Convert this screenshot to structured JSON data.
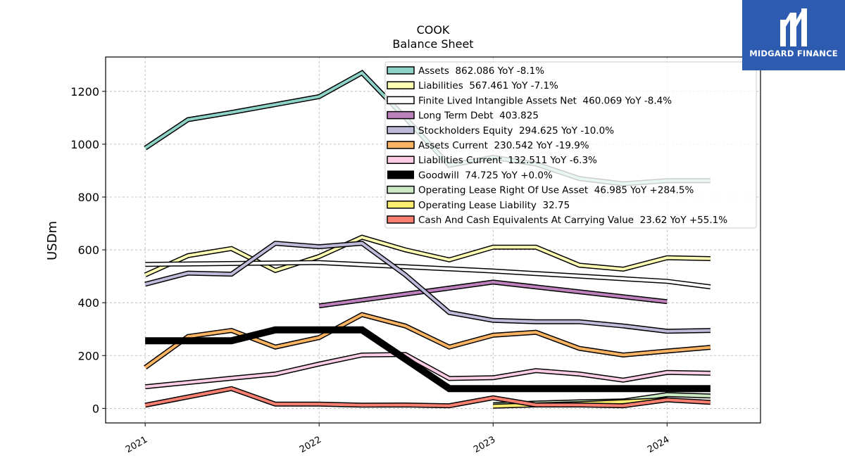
{
  "chart_data": {
    "type": "line",
    "title": "COOK",
    "subtitle": "Balance  Sheet",
    "ylabel": "USDm",
    "xlabel": "",
    "ylim": [
      -55,
      1330
    ],
    "xlim": [
      "2020-10-10",
      "2024-07-15"
    ],
    "yticks": [
      0,
      200,
      400,
      600,
      800,
      1000,
      1200
    ],
    "xticks": [
      "2021",
      "2022",
      "2023",
      "2024"
    ],
    "xtick_dates": [
      "2021-01-01",
      "2022-01-01",
      "2023-01-01",
      "2024-01-01"
    ],
    "grid": true,
    "legend_position": "top-right",
    "series": [
      {
        "name": "Assets  862.086 YoY -8.1%",
        "color": "#8dd3c7",
        "width": 4,
        "x": [
          "2021-01-01",
          "2021-04-01",
          "2021-07-01",
          "2021-10-01",
          "2022-01-01",
          "2022-04-01",
          "2022-07-01",
          "2022-10-01",
          "2023-01-01",
          "2023-04-01",
          "2023-07-01",
          "2023-10-01",
          "2024-01-01",
          "2024-04-01"
        ],
        "y": [
          985,
          1093,
          1120,
          1150,
          1180,
          1270,
          1100,
          920,
          950,
          925,
          870,
          850,
          862,
          862
        ]
      },
      {
        "name": "Liabilities  567.461 YoY -7.1%",
        "color": "#ffffb3",
        "width": 4,
        "x": [
          "2021-01-01",
          "2021-04-01",
          "2021-07-01",
          "2021-10-01",
          "2022-01-01",
          "2022-04-01",
          "2022-07-01",
          "2022-10-01",
          "2023-01-01",
          "2023-04-01",
          "2023-07-01",
          "2023-10-01",
          "2024-01-01",
          "2024-04-01"
        ],
        "y": [
          505,
          578,
          605,
          522,
          575,
          648,
          600,
          562,
          610,
          610,
          542,
          527,
          570,
          567
        ]
      },
      {
        "name": "Finite Lived Intangible Assets Net  460.069 YoY -8.4%",
        "color": "#ffffff",
        "width": 4,
        "x": [
          "2021-01-01",
          "2022-01-01",
          "2023-01-01",
          "2024-01-01",
          "2024-04-01"
        ],
        "y": [
          545,
          552,
          520,
          481,
          460
        ]
      },
      {
        "name": "Long Term Debt  403.825",
        "color": "#bc80bd",
        "width": 4,
        "x": [
          "2022-01-01",
          "2023-01-01",
          "2024-01-01"
        ],
        "y": [
          388,
          478,
          404
        ]
      },
      {
        "name": "Stockholders Equity  294.625 YoY -10.0%",
        "color": "#bebada",
        "width": 4,
        "x": [
          "2021-01-01",
          "2021-04-01",
          "2021-07-01",
          "2021-10-01",
          "2022-01-01",
          "2022-04-01",
          "2022-07-01",
          "2022-10-01",
          "2023-01-01",
          "2023-04-01",
          "2023-07-01",
          "2023-10-01",
          "2024-01-01",
          "2024-04-01"
        ],
        "y": [
          470,
          512,
          508,
          625,
          612,
          625,
          505,
          363,
          333,
          328,
          328,
          312,
          292,
          295
        ]
      },
      {
        "name": "Assets Current  230.542 YoY -19.9%",
        "color": "#fdb462",
        "width": 4,
        "x": [
          "2021-01-01",
          "2021-04-01",
          "2021-07-01",
          "2021-10-01",
          "2022-01-01",
          "2022-04-01",
          "2022-07-01",
          "2022-10-01",
          "2023-01-01",
          "2023-04-01",
          "2023-07-01",
          "2023-10-01",
          "2024-01-01",
          "2024-04-01"
        ],
        "y": [
          155,
          272,
          295,
          232,
          268,
          355,
          312,
          232,
          277,
          288,
          227,
          202,
          217,
          231
        ]
      },
      {
        "name": "Liabilities Current  132.511 YoY -6.3%",
        "color": "#fccde5",
        "width": 4,
        "x": [
          "2021-01-01",
          "2021-07-01",
          "2021-10-01",
          "2022-01-01",
          "2022-04-01",
          "2022-07-01",
          "2022-10-01",
          "2023-01-01",
          "2023-04-01",
          "2023-07-01",
          "2023-10-01",
          "2024-01-01",
          "2024-04-01"
        ],
        "y": [
          82,
          114,
          130,
          168,
          202,
          204,
          113,
          116,
          143,
          130,
          107,
          136,
          133
        ]
      },
      {
        "name": "Goodwill  74.725 YoY +0.0%",
        "color": "#000000",
        "width": 7,
        "x": [
          "2021-01-01",
          "2021-07-01",
          "2021-10-01",
          "2022-04-01",
          "2022-10-01",
          "2024-04-01"
        ],
        "y": [
          256,
          256,
          297,
          297,
          75,
          75
        ]
      },
      {
        "name": "Operating Lease Right Of Use Asset  46.985 YoY +284.5%",
        "color": "#ccebc5",
        "width": 4,
        "x": [
          "2023-01-01",
          "2023-04-01",
          "2023-07-01",
          "2023-10-01",
          "2024-01-01",
          "2024-04-01"
        ],
        "y": [
          14,
          20,
          25,
          28,
          52,
          47
        ]
      },
      {
        "name": "Operating Lease Liability  32.75",
        "color": "#ffed6f",
        "width": 4,
        "x": [
          "2023-01-01",
          "2023-07-01",
          "2024-01-01"
        ],
        "y": [
          8,
          18,
          33
        ]
      },
      {
        "name": "Cash And Cash Equivalents At Carrying Value  23.62 YoY +55.1%",
        "color": "#fb8072",
        "width": 4,
        "x": [
          "2021-01-01",
          "2021-07-01",
          "2021-10-01",
          "2022-01-01",
          "2022-04-01",
          "2022-07-01",
          "2022-10-01",
          "2023-01-01",
          "2023-04-01",
          "2023-07-01",
          "2023-10-01",
          "2024-01-01",
          "2024-04-01"
        ],
        "y": [
          12,
          75,
          16,
          16,
          12,
          13,
          10,
          40,
          13,
          13,
          10,
          32,
          23
        ]
      }
    ]
  },
  "logo": {
    "text": "MIDGARD FINANCE",
    "bg_color": "#2c5bb0"
  }
}
